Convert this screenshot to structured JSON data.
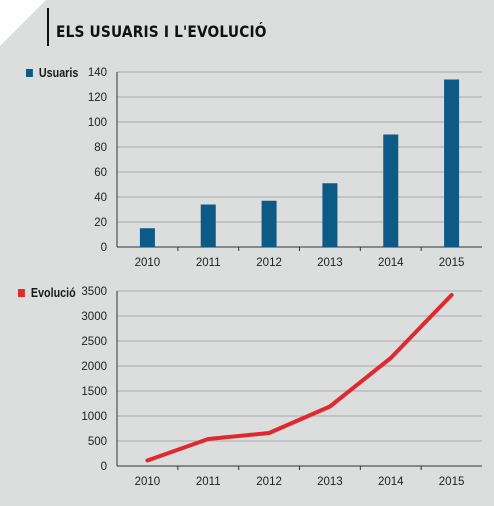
{
  "title": "ELS USUARIS I L'EVOLUCIÓ",
  "colors": {
    "background": "#dcdddd",
    "bar": "#0d5a86",
    "line": "#e0282f",
    "grid": "#999999"
  },
  "chart_data": [
    {
      "type": "bar",
      "categories": [
        "2010",
        "2011",
        "2012",
        "2013",
        "2014",
        "2015"
      ],
      "series": [
        {
          "name": "Usuaris",
          "values": [
            15,
            34,
            37,
            51,
            90,
            134
          ]
        }
      ],
      "ylim": [
        0,
        140
      ],
      "yticks": [
        "0",
        "20",
        "40",
        "60",
        "80",
        "100",
        "120",
        "140"
      ],
      "grid": true,
      "legend": "top-left"
    },
    {
      "type": "line",
      "categories": [
        "2010",
        "2011",
        "2012",
        "2013",
        "2014",
        "2015"
      ],
      "series": [
        {
          "name": "Evolució",
          "values": [
            110,
            540,
            660,
            1190,
            2160,
            3420
          ]
        }
      ],
      "ylim": [
        0,
        3500
      ],
      "yticks": [
        "0",
        "500",
        "1000",
        "1500",
        "2000",
        "2500",
        "3000",
        "3500"
      ],
      "grid": true,
      "legend": "top-left"
    }
  ]
}
